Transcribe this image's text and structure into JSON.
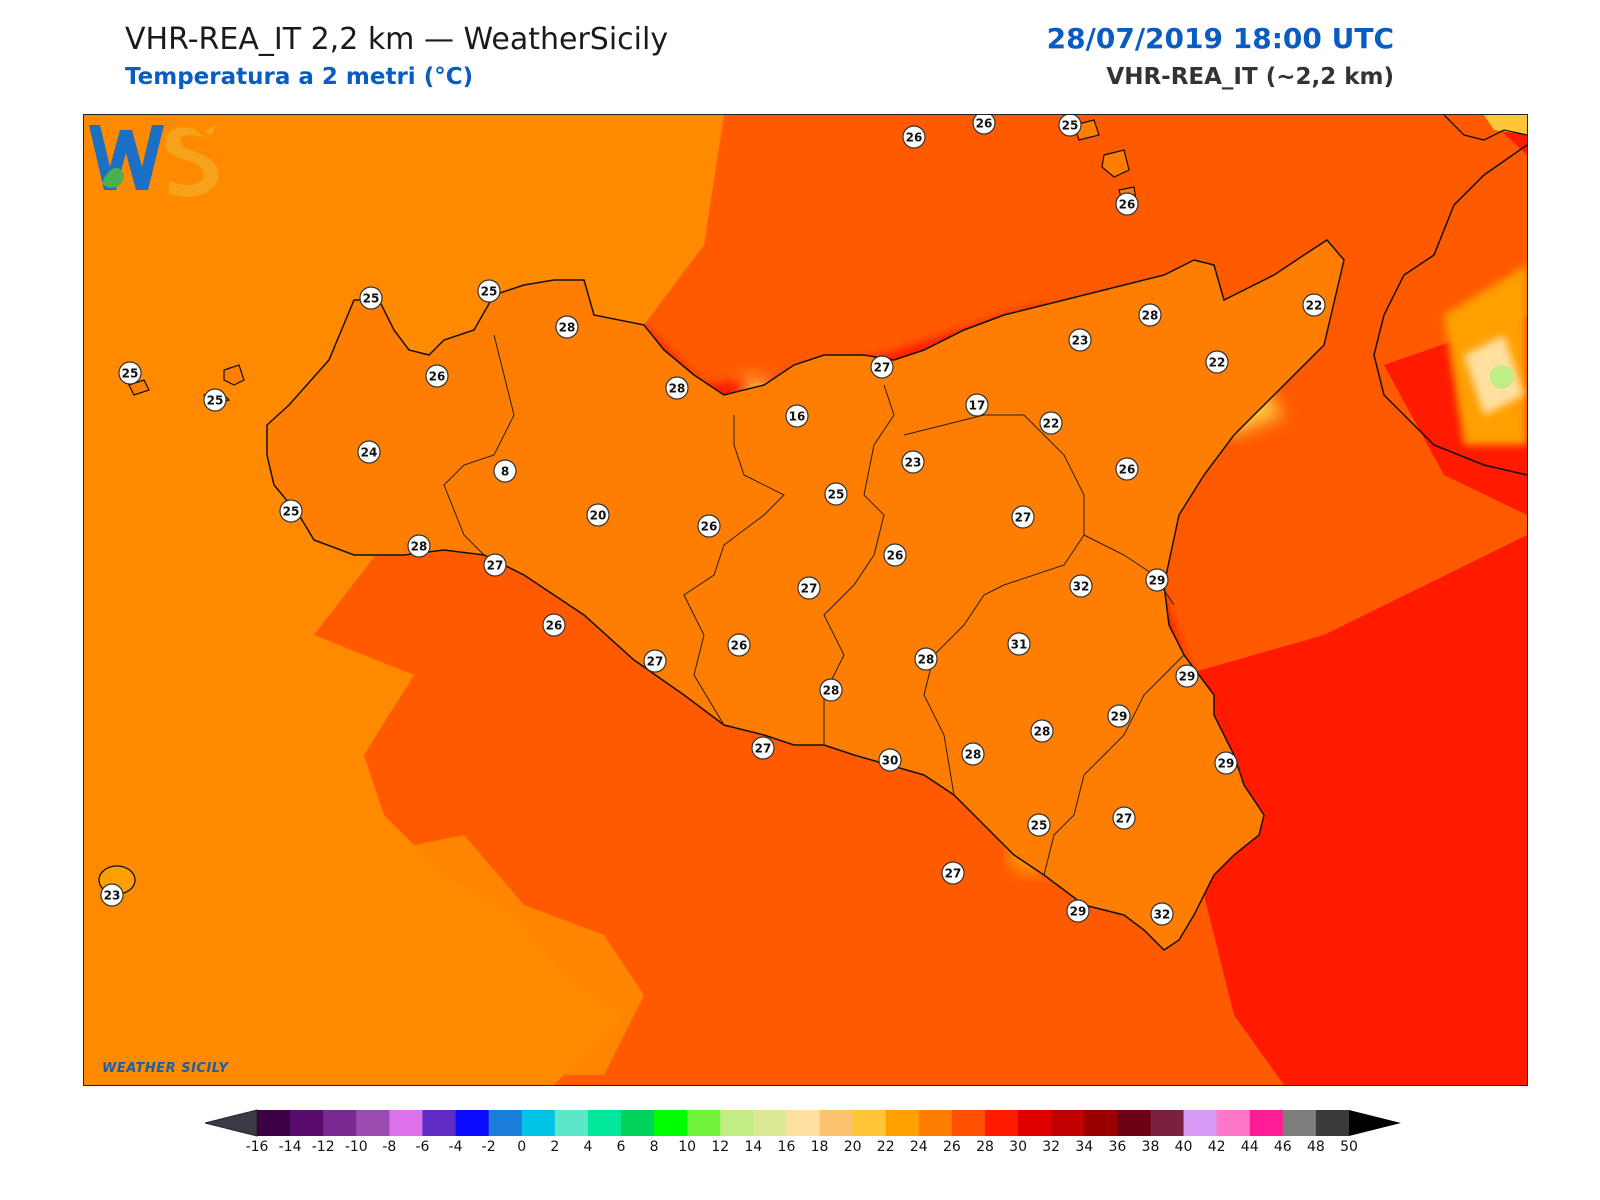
{
  "header": {
    "title": "VHR-REA_IT 2,2 km — WeatherSicily",
    "subtitle": "Temperatura a 2 metri (°C)",
    "datetime": "28/07/2019 18:00 UTC",
    "model": "VHR-REA_IT (~2,2 km)"
  },
  "logo": {
    "icon": "weathersicily-ws-logo",
    "text": "WEATHER SICILY"
  },
  "map": {
    "field": "2m temperature",
    "unit": "°C",
    "point_labels": [
      {
        "value": "26"
      },
      {
        "value": "26"
      },
      {
        "value": "25"
      },
      {
        "value": "26"
      },
      {
        "value": "25"
      },
      {
        "value": "25"
      },
      {
        "value": "28"
      },
      {
        "value": "28"
      },
      {
        "value": "25"
      },
      {
        "value": "25"
      },
      {
        "value": "26"
      },
      {
        "value": "28"
      },
      {
        "value": "27"
      },
      {
        "value": "23"
      },
      {
        "value": "22"
      },
      {
        "value": "22"
      },
      {
        "value": "16"
      },
      {
        "value": "17"
      },
      {
        "value": "22"
      },
      {
        "value": "24"
      },
      {
        "value": "26"
      },
      {
        "value": "8"
      },
      {
        "value": "23"
      },
      {
        "value": "25"
      },
      {
        "value": "20"
      },
      {
        "value": "26"
      },
      {
        "value": "25"
      },
      {
        "value": "27"
      },
      {
        "value": "28"
      },
      {
        "value": "27"
      },
      {
        "value": "26"
      },
      {
        "value": "27"
      },
      {
        "value": "32"
      },
      {
        "value": "29"
      },
      {
        "value": "26"
      },
      {
        "value": "31"
      },
      {
        "value": "27"
      },
      {
        "value": "26"
      },
      {
        "value": "28"
      },
      {
        "value": "29"
      },
      {
        "value": "28"
      },
      {
        "value": "29"
      },
      {
        "value": "28"
      },
      {
        "value": "27"
      },
      {
        "value": "30"
      },
      {
        "value": "28"
      },
      {
        "value": "29"
      },
      {
        "value": "25"
      },
      {
        "value": "27"
      },
      {
        "value": "27"
      },
      {
        "value": "29"
      },
      {
        "value": "32"
      },
      {
        "value": "23"
      }
    ]
  },
  "colorbar": {
    "ticks": [
      "-16",
      "-14",
      "-12",
      "-10",
      "-8",
      "-6",
      "-4",
      "-2",
      "0",
      "2",
      "4",
      "6",
      "8",
      "10",
      "12",
      "14",
      "16",
      "18",
      "20",
      "22",
      "24",
      "26",
      "28",
      "30",
      "32",
      "34",
      "36",
      "38",
      "40",
      "42",
      "44",
      "46",
      "48",
      "50"
    ],
    "colors": [
      "#3d0045",
      "#5a0c6e",
      "#7a2a93",
      "#9a4bb0",
      "#de70ea",
      "#5e2bc4",
      "#0a0aff",
      "#1a7ed8",
      "#00c3e3",
      "#5be8c8",
      "#00e69a",
      "#00d25a",
      "#00ff00",
      "#73f43c",
      "#c0ee85",
      "#dde895",
      "#ffe0a0",
      "#fcc36e",
      "#ffc63a",
      "#ff9f00",
      "#ff7d00",
      "#ff4f00",
      "#ff1a00",
      "#e00000",
      "#c00000",
      "#9a0000",
      "#6c0015",
      "#7a2040",
      "#d79bf5",
      "#ff77c8",
      "#ff1d95",
      "#7d7d7d",
      "#3a3a3a"
    ],
    "under_color": "#3a3a46",
    "over_color": "#000000"
  }
}
